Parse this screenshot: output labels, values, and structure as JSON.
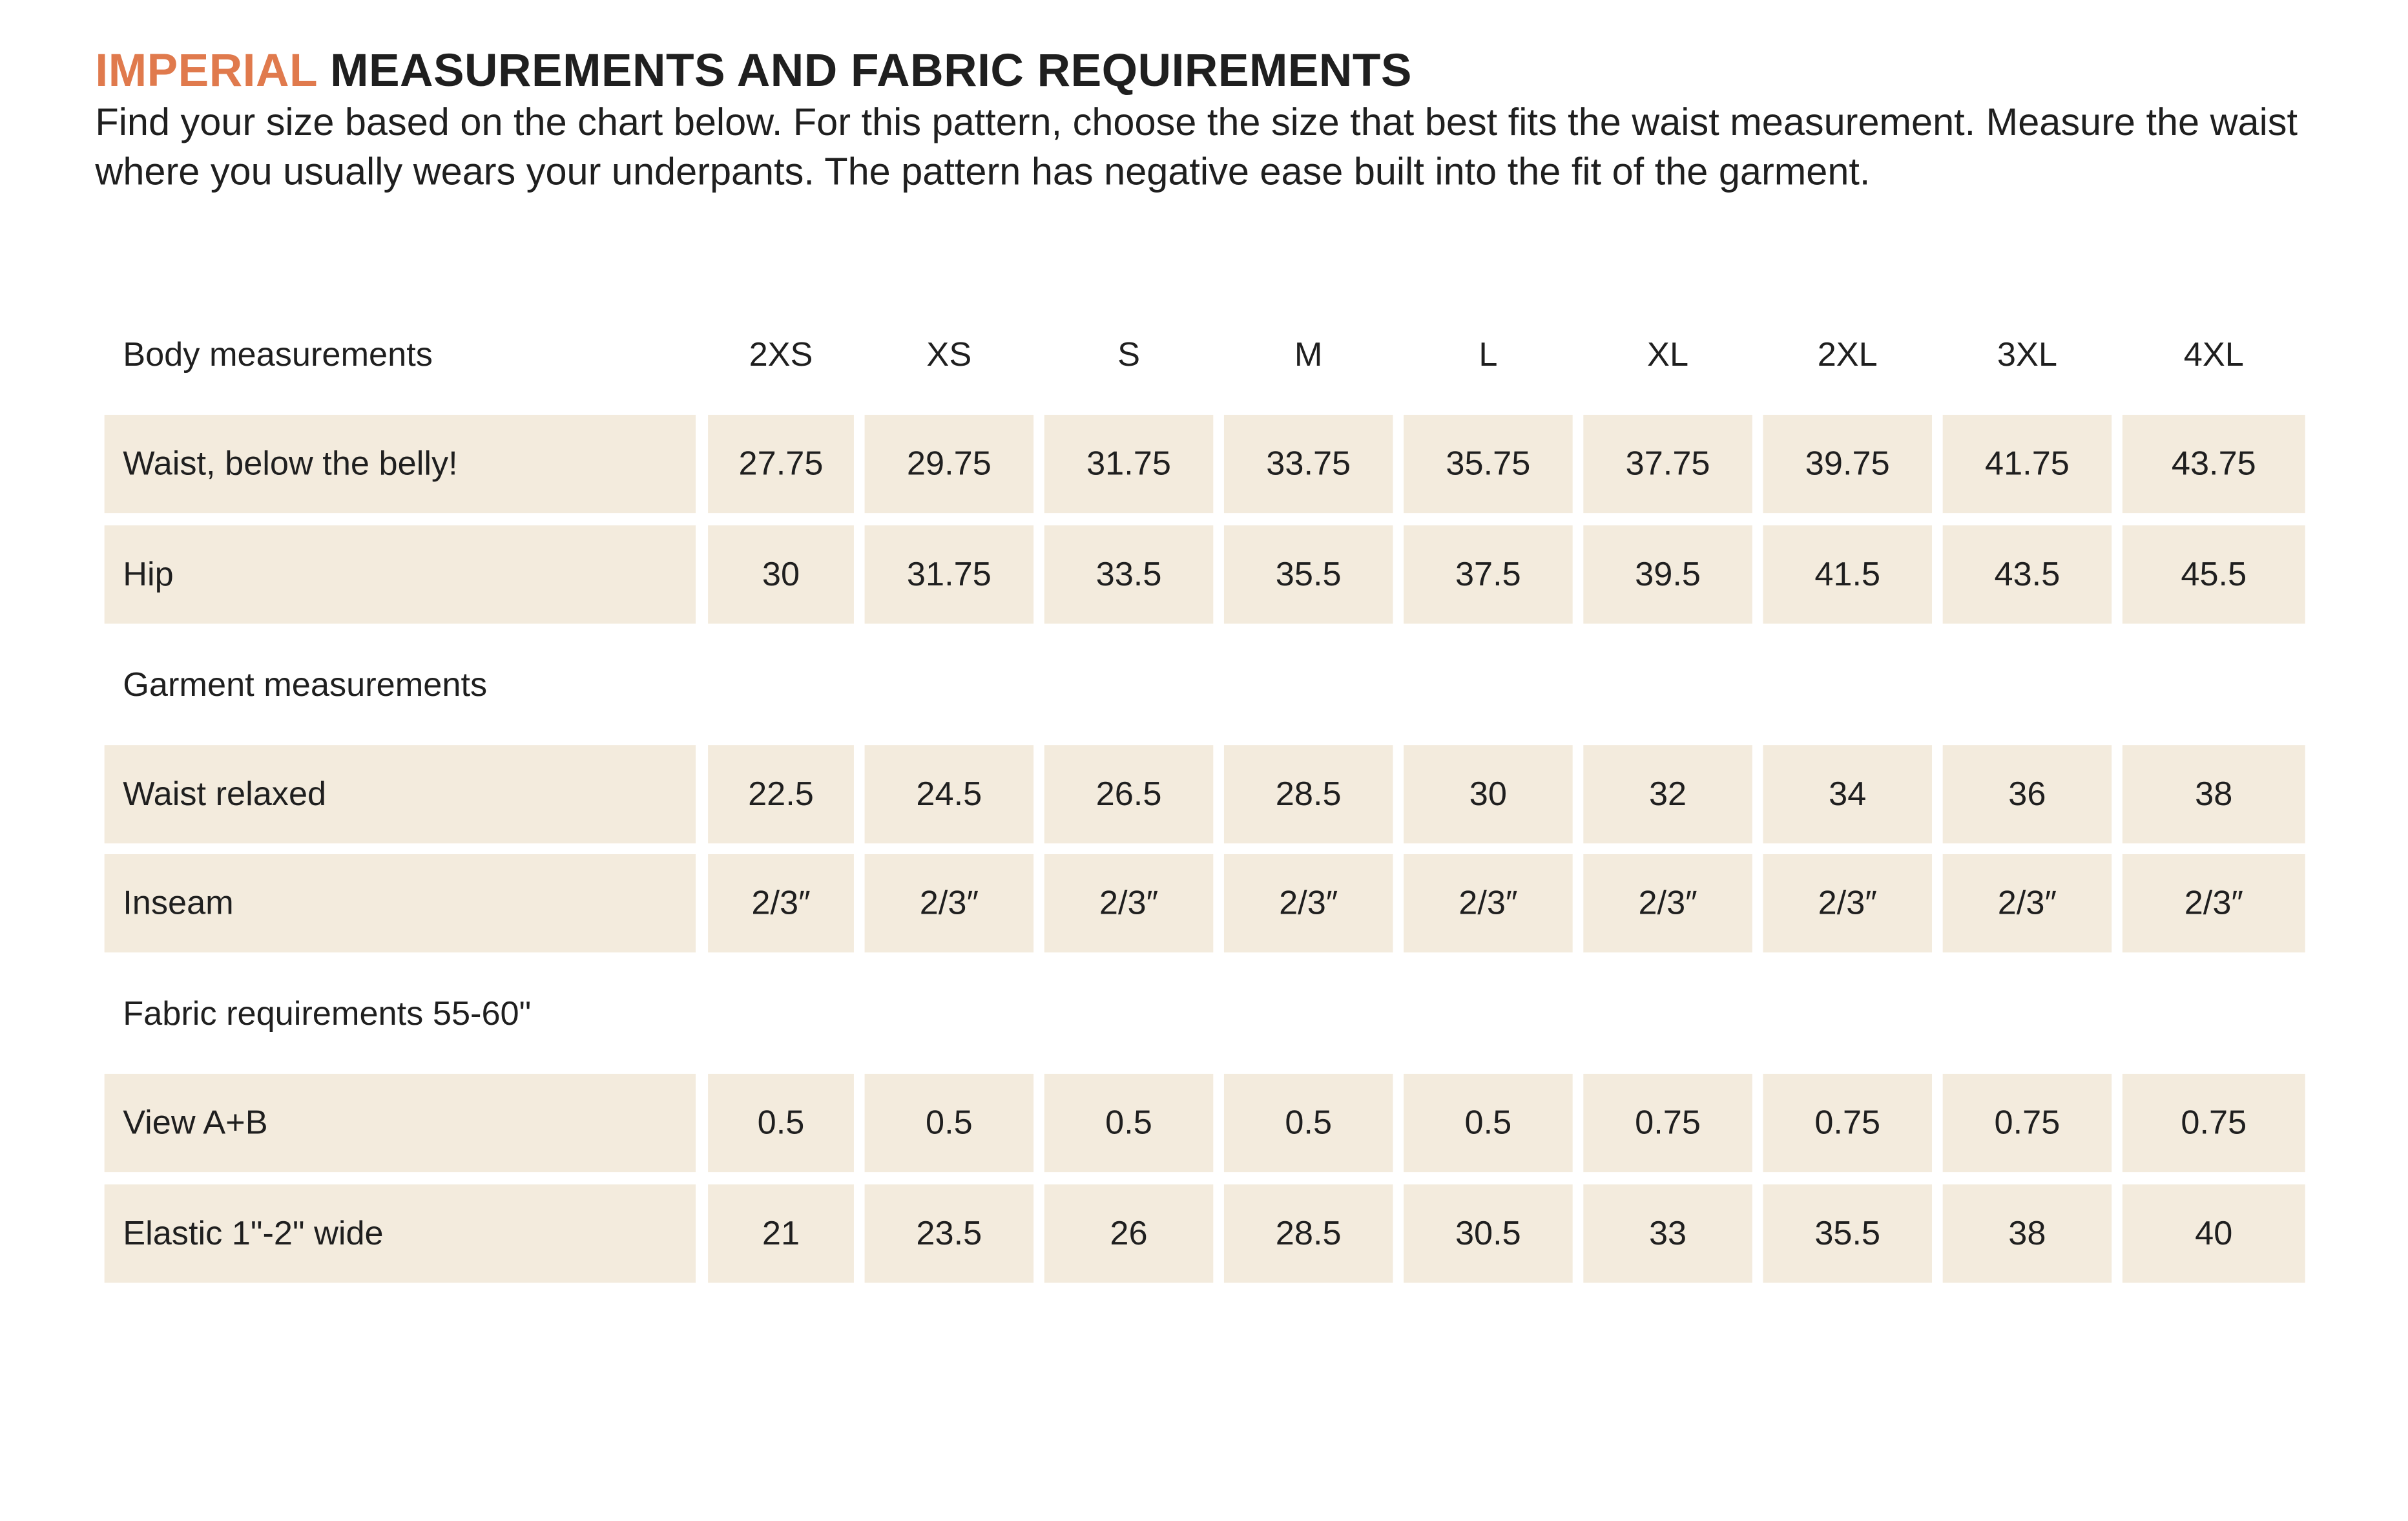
{
  "header": {
    "accent": "IMPERIAL",
    "title": "MEASUREMENTS AND FABRIC REQUIREMENTS",
    "description": "Find your size based on the chart below. For this pattern, choose the size that best fits the waist measurement. Measure the waist where you usually wears your underpants. The pattern has negative ease built into the fit of the garment."
  },
  "table": {
    "sizes": [
      "2XS",
      "XS",
      "S",
      "M",
      "L",
      "XL",
      "2XL",
      "3XL",
      "4XL"
    ],
    "sections": [
      {
        "title": "Body measurements",
        "rows": [
          {
            "label": "Waist, below the belly!",
            "values": [
              27.75,
              29.75,
              31.75,
              33.75,
              35.75,
              37.75,
              39.75,
              41.75,
              43.75
            ]
          },
          {
            "label": "Hip",
            "values": [
              30,
              31.75,
              33.5,
              35.5,
              37.5,
              39.5,
              41.5,
              43.5,
              45.5
            ]
          }
        ]
      },
      {
        "title": "Garment measurements",
        "rows": [
          {
            "label": "Waist relaxed",
            "values": [
              22.5,
              24.5,
              26.5,
              28.5,
              30,
              32,
              34,
              36,
              38
            ]
          },
          {
            "label": "Inseam",
            "values": [
              "2/3″",
              "2/3″",
              "2/3″",
              "2/3″",
              "2/3″",
              "2/3″",
              "2/3″",
              "2/3″",
              "2/3″"
            ]
          }
        ]
      },
      {
        "title": "Fabric requirements 55-60\"",
        "rows": [
          {
            "label": "View A+B",
            "values": [
              0.5,
              0.5,
              0.5,
              0.5,
              0.5,
              0.75,
              0.75,
              0.75,
              0.75
            ]
          },
          {
            "label": "Elastic 1\"-2\" wide",
            "values": [
              21,
              23.5,
              26,
              28.5,
              30.5,
              33,
              35.5,
              38,
              40
            ]
          }
        ]
      }
    ]
  }
}
